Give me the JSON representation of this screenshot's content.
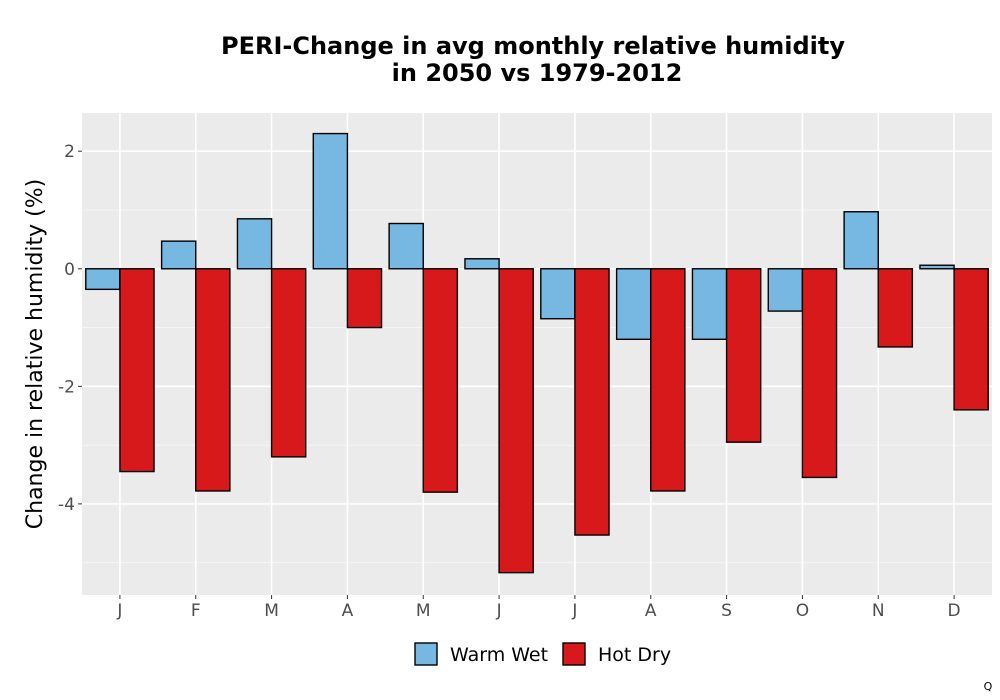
{
  "chart_data": {
    "type": "bar",
    "title_lines": [
      "PERI-Change in avg monthly relative humidity",
      "in 2050 vs 1979-2012"
    ],
    "xlabel": "",
    "ylabel": "Change in relative humidity (%)",
    "categories": [
      "J",
      "F",
      "M",
      "A",
      "M",
      "J",
      "J",
      "A",
      "S",
      "O",
      "N",
      "D"
    ],
    "ylim": [
      -5.55,
      2.65
    ],
    "yticks": [
      -4,
      -2,
      0,
      2
    ],
    "ytick_labels": [
      "-4",
      "-2",
      "0",
      "2"
    ],
    "grid": true,
    "legend_position": "bottom",
    "series": [
      {
        "name": "Warm Wet",
        "color": "#77B8E2",
        "values": [
          -0.35,
          0.47,
          0.85,
          2.3,
          0.77,
          0.17,
          -0.85,
          -1.2,
          -1.2,
          -0.72,
          0.97,
          0.06
        ]
      },
      {
        "name": "Hot Dry",
        "color": "#D7191C",
        "values": [
          -3.45,
          -3.78,
          -3.2,
          -1.0,
          -3.8,
          -5.17,
          -4.53,
          -3.78,
          -2.95,
          -3.55,
          -1.33,
          -2.4
        ]
      }
    ]
  },
  "corner_mark": "Q"
}
